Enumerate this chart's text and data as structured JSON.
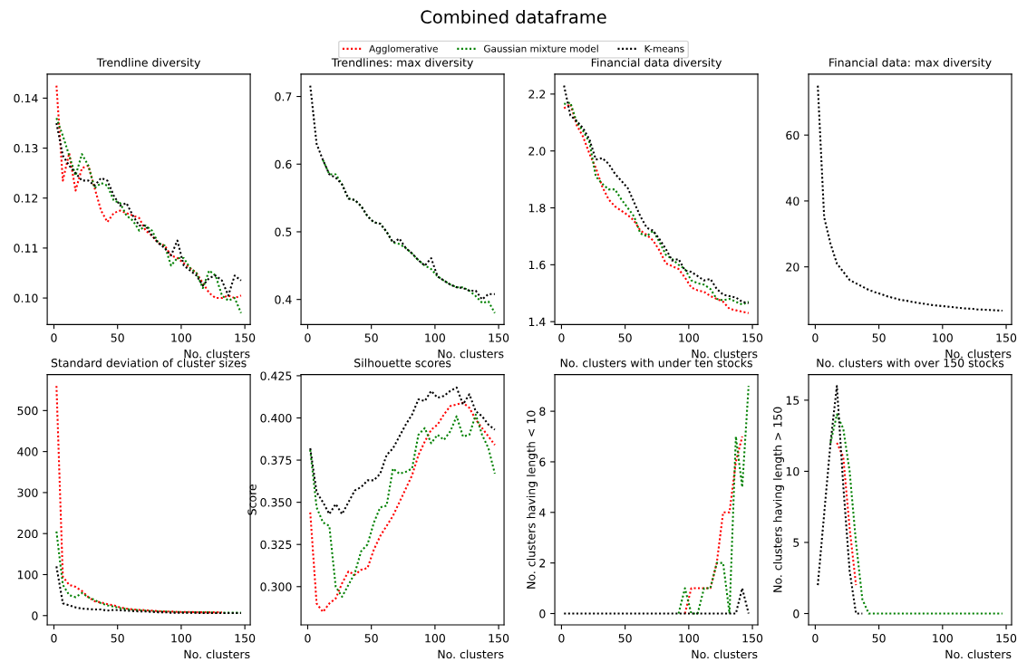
{
  "chart_data": [
    {
      "type": "line",
      "title": "Trendline diversity",
      "xlabel": "No. clusters",
      "annotations": [
        "Combined dataframe"
      ],
      "legend": "top",
      "line_style": "dotted",
      "marker": "none",
      "grid": false,
      "x": [
        2,
        7,
        12,
        17,
        22,
        27,
        32,
        37,
        42,
        47,
        52,
        57,
        62,
        67,
        72,
        77,
        82,
        87,
        92,
        97,
        102,
        107,
        112,
        117,
        122,
        127,
        132,
        137,
        142,
        147
      ],
      "xlim": [
        -5.25,
        154.25
      ],
      "xticks": [
        0,
        50,
        100,
        150
      ],
      "ylim": [
        0.0947,
        0.1448
      ],
      "yticks": [
        {
          "value": 0.1,
          "label": "0.10"
        },
        {
          "value": 0.11,
          "label": "0.11"
        },
        {
          "value": 0.12,
          "label": "0.12"
        },
        {
          "value": 0.13,
          "label": "0.13"
        },
        {
          "value": 0.14,
          "label": "0.14"
        }
      ],
      "series": [
        {
          "name": "Agglomerative",
          "color": "#ff0000",
          "values": [
            0.1425,
            0.1235,
            0.129,
            0.1215,
            0.126,
            0.1265,
            0.122,
            0.1175,
            0.1152,
            0.117,
            0.1175,
            0.117,
            0.1165,
            0.116,
            0.1135,
            0.1125,
            0.111,
            0.1105,
            0.1085,
            0.108,
            0.107,
            0.106,
            0.105,
            0.103,
            0.101,
            0.1,
            0.1,
            0.1005,
            0.1,
            0.1005
          ]
        },
        {
          "name": "Gaussian mixture model",
          "color": "#008000",
          "values": [
            0.136,
            0.1325,
            0.1285,
            0.1245,
            0.1288,
            0.1265,
            0.122,
            0.123,
            0.1225,
            0.1195,
            0.119,
            0.1165,
            0.1155,
            0.1135,
            0.1145,
            0.1135,
            0.111,
            0.1105,
            0.1065,
            0.108,
            0.108,
            0.106,
            0.105,
            0.102,
            0.1055,
            0.1045,
            0.1005,
            0.0995,
            0.1,
            0.097
          ]
        },
        {
          "name": "K-means",
          "color": "#000000",
          "values": [
            0.135,
            0.1285,
            0.1265,
            0.125,
            0.1235,
            0.1235,
            0.1225,
            0.124,
            0.1235,
            0.1205,
            0.1185,
            0.119,
            0.1165,
            0.1145,
            0.1145,
            0.1125,
            0.111,
            0.11,
            0.1085,
            0.1115,
            0.1065,
            0.1055,
            0.1045,
            0.1025,
            0.104,
            0.1045,
            0.1035,
            0.1005,
            0.1045,
            0.1035
          ]
        }
      ]
    },
    {
      "type": "line",
      "title": "Trendlines: max diversity",
      "xlabel": "No. clusters",
      "line_style": "dotted",
      "marker": "none",
      "grid": false,
      "x": [
        2,
        7,
        12,
        17,
        22,
        27,
        32,
        37,
        42,
        47,
        52,
        57,
        62,
        67,
        72,
        77,
        82,
        87,
        92,
        97,
        102,
        107,
        112,
        117,
        122,
        127,
        132,
        137,
        142,
        147
      ],
      "xlim": [
        -5.25,
        154.25
      ],
      "xticks": [
        0,
        50,
        100,
        150
      ],
      "ylim": [
        0.363,
        0.733
      ],
      "yticks": [
        0.4,
        0.5,
        0.6,
        0.7
      ],
      "series": [
        {
          "color": "#008000",
          "values": [
            null,
            null,
            0.606,
            0.585,
            0.585,
            0.57,
            0.549,
            0.547,
            0.538,
            0.523,
            0.514,
            0.512,
            0.5,
            0.484,
            0.482,
            0.476,
            0.468,
            0.458,
            0.45,
            0.445,
            0.434,
            0.428,
            0.422,
            0.418,
            0.418,
            0.413,
            0.405,
            0.395,
            0.397,
            0.38
          ]
        },
        {
          "color": "#000000",
          "values": [
            0.716,
            0.63,
            0.606,
            0.585,
            0.58,
            0.57,
            0.549,
            0.547,
            0.538,
            0.523,
            0.514,
            0.512,
            0.5,
            0.484,
            0.49,
            0.476,
            0.468,
            0.458,
            0.45,
            0.461,
            0.434,
            0.428,
            0.422,
            0.418,
            0.417,
            0.413,
            0.413,
            0.4,
            0.408,
            0.408
          ]
        }
      ]
    },
    {
      "type": "line",
      "title": "Financial data diversity",
      "xlabel": "No. clusters",
      "line_style": "dotted",
      "marker": "none",
      "grid": false,
      "x": [
        2,
        7,
        12,
        17,
        22,
        27,
        32,
        37,
        42,
        47,
        52,
        57,
        62,
        67,
        72,
        77,
        82,
        87,
        92,
        97,
        102,
        107,
        112,
        117,
        122,
        127,
        132,
        137,
        142,
        147
      ],
      "xlim": [
        -5.25,
        154.25
      ],
      "xticks": [
        0,
        50,
        100,
        150
      ],
      "ylim": [
        1.39,
        2.27
      ],
      "yticks": [
        1.4,
        1.6,
        1.8,
        {
          "value": 2.0,
          "label": "2.0"
        },
        2.2
      ],
      "series": [
        {
          "color": "#ff0000",
          "values": [
            2.15,
            2.165,
            2.09,
            2.05,
            1.99,
            1.94,
            1.875,
            1.83,
            1.805,
            1.79,
            1.775,
            1.755,
            1.72,
            1.705,
            1.685,
            1.65,
            1.605,
            1.595,
            1.585,
            1.555,
            1.52,
            1.51,
            1.505,
            1.49,
            1.48,
            1.47,
            1.445,
            1.44,
            1.435,
            1.43
          ]
        },
        {
          "color": "#008000",
          "values": [
            2.165,
            2.17,
            2.1,
            2.07,
            2.03,
            1.91,
            1.885,
            1.865,
            1.865,
            1.83,
            1.8,
            1.77,
            1.71,
            1.7,
            1.72,
            1.68,
            1.635,
            1.62,
            1.6,
            1.585,
            1.545,
            1.535,
            1.53,
            1.515,
            1.48,
            1.475,
            1.48,
            1.47,
            1.46,
            1.47
          ]
        },
        {
          "color": "#000000",
          "values": [
            2.23,
            2.125,
            2.105,
            2.08,
            2.04,
            1.97,
            1.975,
            1.955,
            1.92,
            1.895,
            1.87,
            1.82,
            1.77,
            1.73,
            1.72,
            1.69,
            1.655,
            1.615,
            1.62,
            1.58,
            1.575,
            1.56,
            1.545,
            1.55,
            1.515,
            1.495,
            1.49,
            1.485,
            1.47,
            1.465
          ]
        }
      ]
    },
    {
      "type": "line",
      "title": "Financial data: max diversity",
      "xlabel": "No. clusters",
      "line_style": "dotted",
      "marker": "none",
      "grid": false,
      "x": [
        2,
        7,
        12,
        17,
        22,
        27,
        32,
        37,
        42,
        47,
        52,
        57,
        62,
        67,
        72,
        77,
        82,
        87,
        92,
        97,
        102,
        107,
        112,
        117,
        122,
        127,
        132,
        137,
        142,
        147
      ],
      "xlim": [
        -5.25,
        154.25
      ],
      "xticks": [
        0,
        50,
        100,
        150
      ],
      "ylim": [
        2.5,
        78.5
      ],
      "yticks": [
        20,
        40,
        60
      ],
      "series": [
        {
          "color": "#000000",
          "values": [
            75,
            35,
            27,
            21,
            18.5,
            16,
            15,
            14,
            13,
            12.3,
            11.7,
            11,
            10.5,
            10,
            9.7,
            9.3,
            9,
            8.7,
            8.4,
            8.2,
            8,
            7.8,
            7.6,
            7.4,
            7.3,
            7.1,
            7,
            6.9,
            6.8,
            6.7
          ]
        }
      ]
    },
    {
      "type": "line",
      "title": "Standard deviation of cluster sizes",
      "xlabel": "No. clusters",
      "line_style": "dotted",
      "marker": "none",
      "grid": false,
      "x": [
        2,
        7,
        12,
        17,
        22,
        27,
        32,
        37,
        42,
        47,
        52,
        57,
        62,
        67,
        72,
        77,
        82,
        87,
        92,
        97,
        102,
        107,
        112,
        117,
        122,
        127,
        132,
        137,
        142,
        147
      ],
      "xlim": [
        -5.25,
        154.25
      ],
      "xticks": [
        0,
        50,
        100,
        150
      ],
      "ylim": [
        -22.75,
        587.75
      ],
      "yticks": [
        0,
        100,
        200,
        300,
        400,
        500
      ],
      "series": [
        {
          "color": "#ff0000",
          "values": [
            560,
            95,
            75,
            70,
            60,
            45,
            35,
            32,
            28,
            25,
            20,
            17,
            15,
            14,
            13,
            12,
            11,
            10,
            10,
            9,
            9,
            9,
            8,
            8,
            8,
            8,
            8,
            null,
            null,
            null
          ]
        },
        {
          "color": "#008000",
          "values": [
            205,
            75,
            50,
            45,
            55,
            45,
            38,
            30,
            25,
            22,
            18,
            16,
            14,
            13,
            12,
            11,
            10,
            10,
            9,
            9,
            8,
            8,
            8,
            8,
            8,
            7,
            7,
            7,
            7,
            7
          ]
        },
        {
          "color": "#000000",
          "values": [
            120,
            30,
            25,
            20,
            17,
            16,
            15,
            15,
            12,
            14,
            13,
            12,
            11,
            10,
            10,
            9,
            8,
            8,
            7,
            7,
            7,
            7,
            7,
            6,
            6,
            6,
            6,
            6,
            6,
            6
          ]
        }
      ]
    },
    {
      "type": "line",
      "title": "Silhouette scores",
      "xlabel": "No. clusters",
      "ylabel": "Score",
      "line_style": "dotted",
      "marker": "none",
      "grid": false,
      "x": [
        2,
        7,
        12,
        17,
        22,
        27,
        32,
        37,
        42,
        47,
        52,
        57,
        62,
        67,
        72,
        77,
        82,
        87,
        92,
        97,
        102,
        107,
        112,
        117,
        122,
        127,
        132,
        137,
        142,
        147
      ],
      "xlim": [
        -5.25,
        154.25
      ],
      "xticks": [
        0,
        50,
        100,
        150
      ],
      "ylim": [
        0.2773,
        0.4257
      ],
      "yticks": [
        {
          "value": 0.3,
          "label": "0.300"
        },
        {
          "value": 0.325,
          "label": "0.325"
        },
        {
          "value": 0.35,
          "label": "0.350"
        },
        {
          "value": 0.375,
          "label": "0.375"
        },
        {
          "value": 0.4,
          "label": "0.400"
        },
        {
          "value": 0.425,
          "label": "0.425"
        }
      ],
      "series": [
        {
          "color": "#ff0000",
          "values": [
            0.344,
            0.29,
            0.285,
            0.29,
            0.293,
            0.302,
            0.309,
            0.307,
            0.31,
            0.311,
            0.322,
            0.33,
            0.336,
            0.342,
            0.35,
            0.358,
            0.366,
            0.378,
            0.386,
            0.393,
            0.396,
            0.402,
            0.407,
            0.408,
            0.409,
            0.406,
            0.399,
            0.394,
            0.389,
            0.384
          ]
        },
        {
          "color": "#008000",
          "values": [
            0.381,
            0.347,
            0.338,
            0.336,
            0.3,
            0.294,
            0.301,
            0.308,
            0.321,
            0.325,
            0.338,
            0.347,
            0.348,
            0.37,
            0.367,
            0.368,
            0.37,
            0.39,
            0.394,
            0.385,
            0.39,
            0.387,
            0.392,
            0.401,
            0.389,
            0.39,
            0.402,
            0.39,
            0.382,
            0.367
          ]
        },
        {
          "color": "#000000",
          "values": [
            0.382,
            0.356,
            0.35,
            0.343,
            0.349,
            0.343,
            0.35,
            0.357,
            0.359,
            0.363,
            0.363,
            0.367,
            0.378,
            0.382,
            0.389,
            0.396,
            0.402,
            0.411,
            0.41,
            0.416,
            0.412,
            0.413,
            0.416,
            0.418,
            0.408,
            0.414,
            0.404,
            0.401,
            0.396,
            0.393
          ]
        }
      ]
    },
    {
      "type": "line",
      "title": "No. clusters with under ten stocks",
      "xlabel": "No. clusters",
      "ylabel": "No. clusters having length < 10",
      "line_style": "dotted",
      "marker": "none",
      "grid": false,
      "x": [
        2,
        7,
        12,
        17,
        22,
        27,
        32,
        37,
        42,
        47,
        52,
        57,
        62,
        67,
        72,
        77,
        82,
        87,
        92,
        97,
        102,
        107,
        112,
        117,
        122,
        127,
        132,
        137,
        142,
        147
      ],
      "xlim": [
        -5.25,
        154.25
      ],
      "xticks": [
        0,
        50,
        100,
        150
      ],
      "ylim": [
        -0.45,
        9.45
      ],
      "yticks": [
        0,
        2,
        4,
        6,
        8
      ],
      "series": [
        {
          "color": "#ff0000",
          "values": [
            null,
            null,
            null,
            null,
            null,
            null,
            null,
            null,
            null,
            null,
            null,
            null,
            null,
            null,
            null,
            null,
            null,
            null,
            null,
            0,
            1,
            1,
            1,
            1,
            2,
            4,
            4,
            6,
            7,
            null
          ]
        },
        {
          "color": "#008000",
          "values": [
            null,
            null,
            null,
            null,
            null,
            null,
            null,
            null,
            null,
            null,
            null,
            null,
            null,
            null,
            null,
            null,
            null,
            null,
            0,
            1,
            0,
            0,
            1,
            1,
            2,
            2,
            0,
            7,
            5,
            9
          ]
        },
        {
          "color": "#000000",
          "values": [
            0,
            0,
            0,
            0,
            0,
            0,
            0,
            0,
            0,
            0,
            0,
            0,
            0,
            0,
            0,
            0,
            0,
            0,
            0,
            0,
            0,
            0,
            0,
            0,
            0,
            0,
            0,
            0,
            1,
            0
          ]
        }
      ]
    },
    {
      "type": "line",
      "title": "No. clusters with over 150 stocks",
      "xlabel": "No. clusters",
      "ylabel": "No. clusters having length > 150",
      "line_style": "dotted",
      "marker": "none",
      "grid": false,
      "x": [
        2,
        7,
        12,
        17,
        22,
        27,
        32,
        37,
        42,
        47,
        52,
        57,
        62,
        67,
        72,
        77,
        82,
        87,
        92,
        97,
        102,
        107,
        112,
        117,
        122,
        127,
        132,
        137,
        142,
        147
      ],
      "xlim": [
        -5.25,
        154.25
      ],
      "xticks": [
        0,
        50,
        100,
        150
      ],
      "ylim": [
        -0.8,
        16.8
      ],
      "yticks": [
        0,
        5,
        10,
        15
      ],
      "series": [
        {
          "color": "#ff0000",
          "values": [
            null,
            null,
            null,
            12,
            11,
            6,
            2,
            null,
            null,
            null,
            null,
            null,
            null,
            null,
            null,
            null,
            null,
            null,
            null,
            null,
            null,
            null,
            null,
            null,
            null,
            null,
            null,
            null,
            null,
            null
          ]
        },
        {
          "color": "#008000",
          "values": [
            null,
            null,
            12,
            14,
            13,
            10,
            5,
            1,
            0,
            0,
            0,
            0,
            0,
            0,
            0,
            0,
            0,
            0,
            0,
            0,
            0,
            0,
            0,
            0,
            0,
            0,
            0,
            0,
            0,
            0
          ]
        },
        {
          "color": "#000000",
          "values": [
            2,
            7,
            12,
            16,
            9,
            3,
            0,
            0,
            null,
            null,
            null,
            null,
            null,
            null,
            null,
            null,
            null,
            null,
            null,
            null,
            null,
            null,
            null,
            null,
            null,
            null,
            null,
            null,
            null,
            null
          ]
        }
      ]
    }
  ]
}
